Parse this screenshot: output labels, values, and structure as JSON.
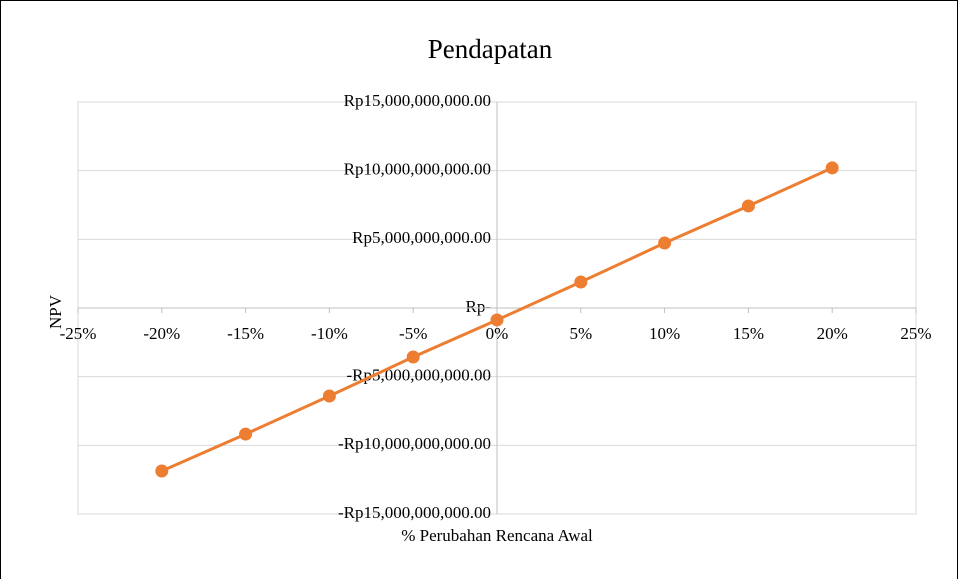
{
  "chart_data": {
    "type": "line",
    "title": "Pendapatan",
    "xlabel": "% Perubahan Rencana Awal",
    "ylabel": "NPV",
    "x": [
      -20,
      -15,
      -10,
      -5,
      0,
      5,
      10,
      15,
      20
    ],
    "series": [
      {
        "name": "NPV",
        "color": "#ed7d31",
        "values": [
          -11870000000,
          -9180000000,
          -6410000000,
          -3570000000,
          -870000000,
          1890000000,
          4730000000,
          7430000000,
          10200000000
        ]
      }
    ],
    "xlim": [
      -25,
      25
    ],
    "xticks": [
      {
        "value": -25,
        "label": "-25%"
      },
      {
        "value": -20,
        "label": "-20%"
      },
      {
        "value": -15,
        "label": "-15%"
      },
      {
        "value": -10,
        "label": "-10%"
      },
      {
        "value": -5,
        "label": "-5%"
      },
      {
        "value": 0,
        "label": "0%"
      },
      {
        "value": 5,
        "label": "5%"
      },
      {
        "value": 10,
        "label": "10%"
      },
      {
        "value": 15,
        "label": "15%"
      },
      {
        "value": 20,
        "label": "20%"
      },
      {
        "value": 25,
        "label": "25%"
      }
    ],
    "ylim": [
      -15000000000,
      15000000000
    ],
    "yticks": [
      {
        "value": -15000000000,
        "label": "-Rp15,000,000,000.00"
      },
      {
        "value": -10000000000,
        "label": "-Rp10,000,000,000.00"
      },
      {
        "value": -5000000000,
        "label": "-Rp5,000,000,000.00"
      },
      {
        "value": 0,
        "label": "Rp-"
      },
      {
        "value": 5000000000,
        "label": "Rp5,000,000,000.00"
      },
      {
        "value": 10000000000,
        "label": "Rp10,000,000,000.00"
      },
      {
        "value": 15000000000,
        "label": "Rp15,000,000,000.00"
      }
    ],
    "grid": true
  }
}
